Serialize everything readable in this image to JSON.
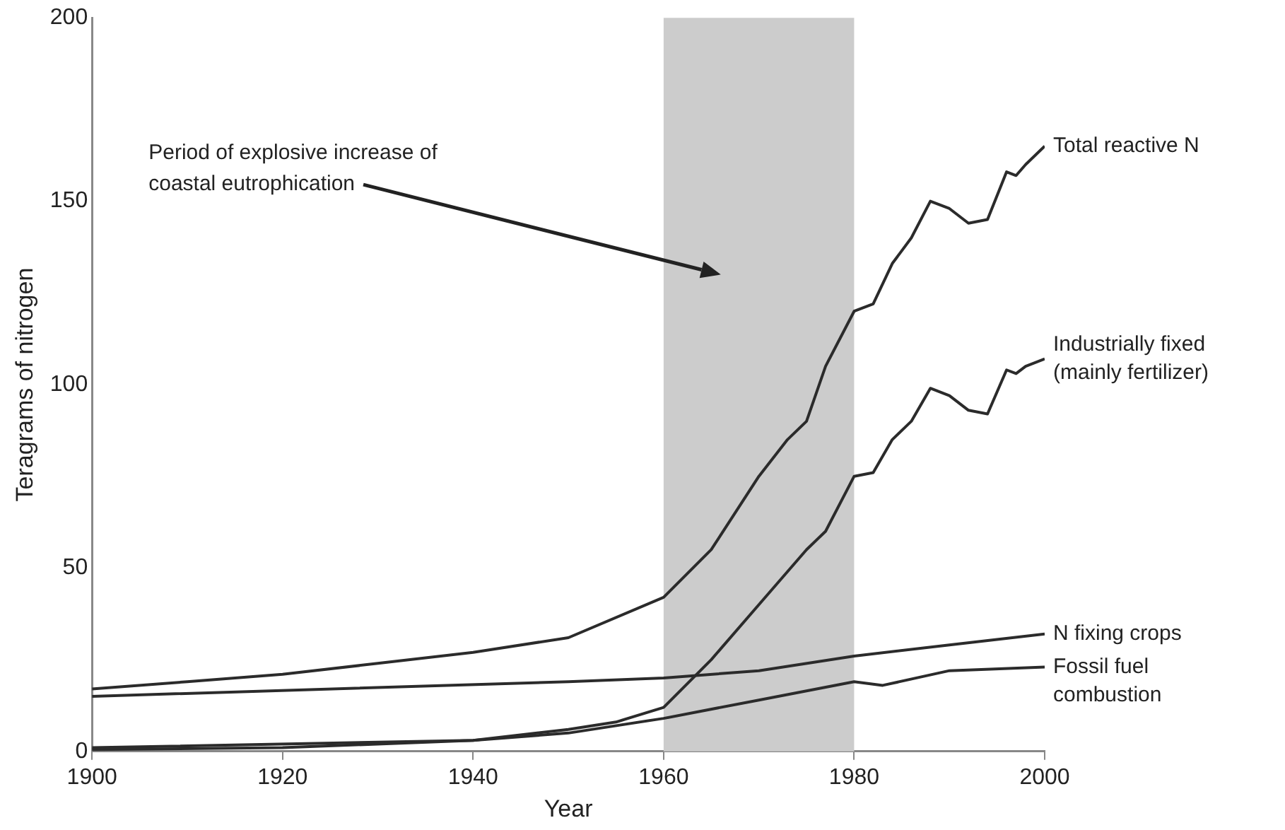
{
  "chart_data": {
    "type": "line",
    "xlabel": "Year",
    "ylabel": "Teragrams of nitrogen",
    "xlim": [
      1900,
      2000
    ],
    "xticks": [
      1900,
      1920,
      1940,
      1960,
      1980,
      2000
    ],
    "ylim": [
      0,
      200
    ],
    "yticks": [
      0,
      50,
      100,
      150,
      200
    ],
    "grid": false,
    "legend": false,
    "marker": "none",
    "line_style": "solid",
    "bands": [
      {
        "axis": "x",
        "from": 1960,
        "to": 1980,
        "color": "#cccccc"
      }
    ],
    "annotations": [
      "Period of explosive increase of coastal eutrophication"
    ],
    "series": [
      {
        "name": "Total reactive N",
        "color": "#2b2b2b",
        "x": [
          1900,
          1910,
          1920,
          1930,
          1940,
          1950,
          1960,
          1965,
          1970,
          1973,
          1975,
          1977,
          1980,
          1982,
          1984,
          1986,
          1988,
          1990,
          1992,
          1994,
          1996,
          1997,
          1998,
          2000
        ],
        "values": [
          17,
          19,
          21,
          24,
          27,
          31,
          42,
          55,
          75,
          85,
          90,
          105,
          120,
          122,
          133,
          140,
          150,
          148,
          144,
          145,
          158,
          157,
          160,
          165
        ]
      },
      {
        "name": "Industrially fixed (mainly fertilizer)",
        "color": "#2b2b2b",
        "x": [
          1900,
          1920,
          1940,
          1950,
          1955,
          1960,
          1965,
          1970,
          1975,
          1977,
          1980,
          1982,
          1984,
          1986,
          1988,
          1990,
          1992,
          1994,
          1996,
          1997,
          1998,
          2000
        ],
        "values": [
          0.5,
          1,
          3,
          6,
          8,
          12,
          25,
          40,
          55,
          60,
          75,
          76,
          85,
          90,
          99,
          97,
          93,
          92,
          104,
          103,
          105,
          107
        ]
      },
      {
        "name": "N fixing crops",
        "color": "#2b2b2b",
        "x": [
          1900,
          1950,
          1960,
          1970,
          1980,
          1990,
          2000
        ],
        "values": [
          15,
          19,
          20,
          22,
          26,
          29,
          32
        ]
      },
      {
        "name": "Fossil fuel combustion",
        "color": "#2b2b2b",
        "x": [
          1900,
          1940,
          1950,
          1960,
          1970,
          1980,
          1983,
          1990,
          2000
        ],
        "values": [
          1,
          3,
          5,
          9,
          14,
          19,
          18,
          22,
          23
        ]
      }
    ]
  }
}
